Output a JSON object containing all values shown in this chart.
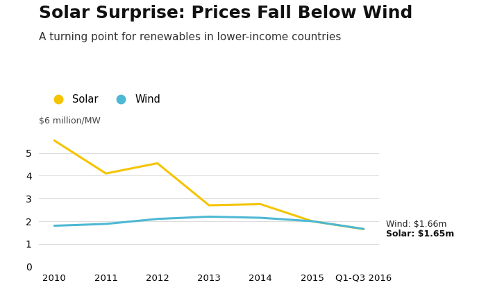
{
  "title": "Solar Surprise: Prices Fall Below Wind",
  "subtitle": "A turning point for renewables in lower-income countries",
  "ylabel": "$6 million/MW",
  "x_labels": [
    "2010",
    "2011",
    "2012",
    "2013",
    "2014",
    "2015",
    "Q1-Q3 2016"
  ],
  "x_positions": [
    0,
    1,
    2,
    3,
    4,
    5,
    6
  ],
  "solar_values": [
    5.55,
    4.1,
    4.55,
    2.7,
    2.75,
    2.0,
    1.65
  ],
  "wind_values": [
    1.8,
    1.88,
    2.1,
    2.2,
    2.15,
    2.0,
    1.66
  ],
  "solar_color": "#F5C400",
  "wind_color": "#4DB8D4",
  "solar_label": "Solar",
  "wind_label": "Wind",
  "annotation_wind": "Wind: $1.66m",
  "annotation_solar": "Solar: $1.65m",
  "ylim": [
    0,
    6
  ],
  "yticks": [
    0,
    1,
    2,
    3,
    4,
    5
  ],
  "bg_color": "#ffffff",
  "grid_color": "#dddddd",
  "title_fontsize": 18,
  "subtitle_fontsize": 11,
  "line_width": 2.2
}
